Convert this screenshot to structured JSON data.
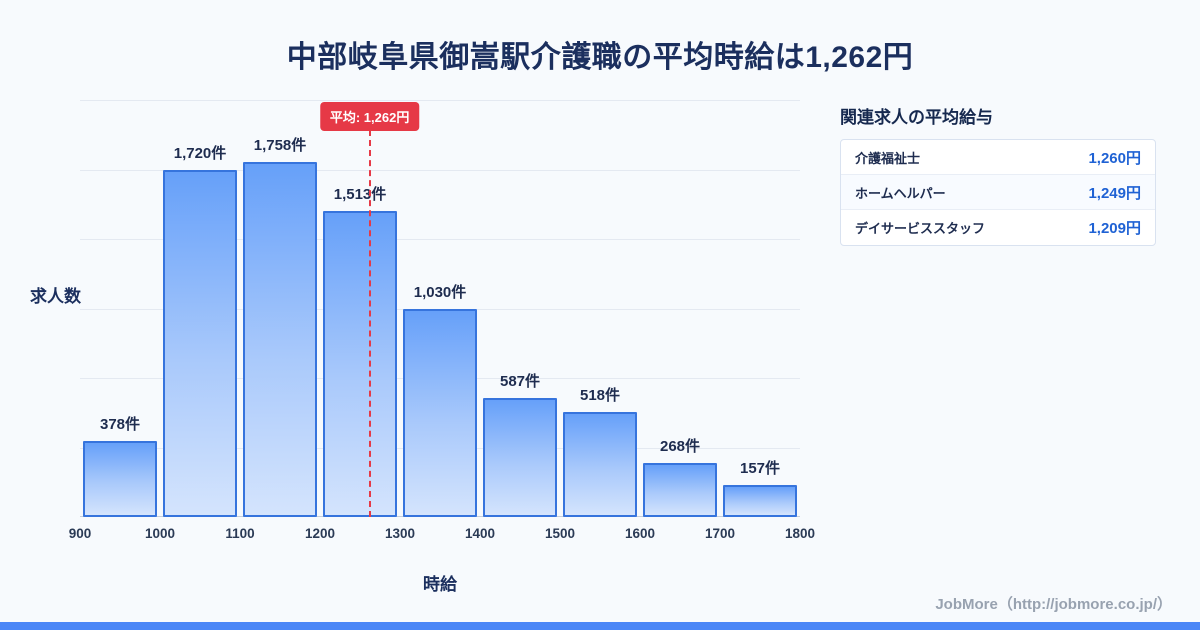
{
  "page": {
    "title": "中部岐阜県御嵩駅介護職の平均時給は1,262円",
    "credit": "JobMore（http://jobmore.co.jp/）"
  },
  "chart_data": {
    "type": "bar",
    "title": "中部岐阜県御嵩駅介護職の平均時給は1,262円",
    "xlabel": "時給",
    "ylabel": "求人数",
    "bin_edges": [
      900,
      1000,
      1100,
      1200,
      1300,
      1400,
      1500,
      1600,
      1700,
      1800
    ],
    "x_tick_labels": [
      "900",
      "1000",
      "1100",
      "1200",
      "1300",
      "1400",
      "1500",
      "1600",
      "1700",
      "1800"
    ],
    "values": [
      378,
      1720,
      1758,
      1513,
      1030,
      587,
      518,
      268,
      157
    ],
    "value_labels": [
      "378件",
      "1,720件",
      "1,758件",
      "1,513件",
      "1,030件",
      "587件",
      "518件",
      "268件",
      "157件"
    ],
    "mean_value": 1262,
    "mean_label": "平均: 1,262円",
    "xlim": [
      900,
      1800
    ],
    "grid": true,
    "legend_position": "none",
    "bar_color_top": "#66a0f9",
    "bar_color_bottom": "#d4e4fd",
    "bar_border_color": "#3674dd",
    "mean_line_color": "#e63946"
  },
  "related": {
    "heading": "関連求人の平均給与",
    "rows": [
      {
        "label": "介護福祉士",
        "value": "1,260円"
      },
      {
        "label": "ホームヘルパー",
        "value": "1,249円"
      },
      {
        "label": "デイサービススタッフ",
        "value": "1,209円"
      }
    ]
  },
  "colors": {
    "background": "#f7fafd",
    "title_navy": "#1b2f5e",
    "accent_blue": "#1f62d4",
    "footer_blue": "#4a86f7",
    "mean_red": "#e63946"
  }
}
